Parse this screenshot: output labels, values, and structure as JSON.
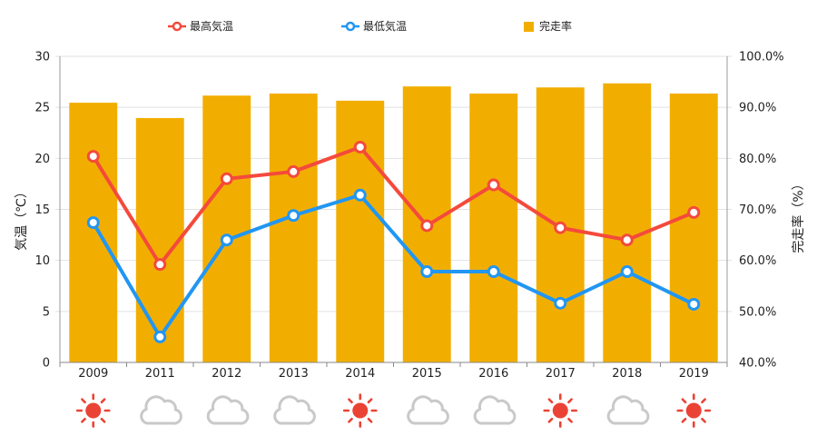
{
  "chart_data": {
    "type": "bar",
    "categories": [
      "2009",
      "2011",
      "2012",
      "2013",
      "2014",
      "2015",
      "2016",
      "2017",
      "2018",
      "2019"
    ],
    "series": [
      {
        "name": "最高気温",
        "type": "line",
        "axis": "left",
        "color": "#F44A3C",
        "values": [
          20.2,
          9.6,
          18.0,
          18.7,
          21.1,
          13.4,
          17.4,
          13.2,
          12.0,
          14.7
        ]
      },
      {
        "name": "最低気温",
        "type": "line",
        "axis": "left",
        "color": "#2196F3",
        "values": [
          13.7,
          2.5,
          12.0,
          14.4,
          16.4,
          8.9,
          8.9,
          5.8,
          8.9,
          5.7
        ]
      },
      {
        "name": "完走率",
        "type": "bar",
        "axis": "right",
        "color": "#F2AE00",
        "values": [
          90.9,
          87.9,
          92.3,
          92.7,
          91.3,
          94.1,
          92.7,
          93.9,
          94.7,
          92.7
        ]
      }
    ],
    "ylabel": "気温（℃）",
    "y2label": "完走率（%）",
    "ylim": [
      0,
      30
    ],
    "y2lim": [
      40,
      100
    ],
    "yticks": [
      0,
      5,
      10,
      15,
      20,
      25,
      30
    ],
    "ytick_labels": [
      "0",
      "5",
      "10",
      "15",
      "20",
      "25",
      "30"
    ],
    "y2ticks": [
      40,
      50,
      60,
      70,
      80,
      90,
      100
    ],
    "y2tick_labels": [
      "40.0%",
      "50.0%",
      "60.0%",
      "70.0%",
      "80.0%",
      "90.0%",
      "100.0%"
    ],
    "grid": true,
    "legend_position": "top"
  },
  "weather_icons": [
    "sun-icon",
    "cloud-icon",
    "cloud-icon",
    "cloud-icon",
    "sun-icon",
    "cloud-icon",
    "cloud-icon",
    "sun-icon",
    "cloud-icon",
    "sun-icon"
  ],
  "icon_colors": {
    "sun-icon": "#EA4335",
    "cloud-icon": "#C9C9C9"
  }
}
